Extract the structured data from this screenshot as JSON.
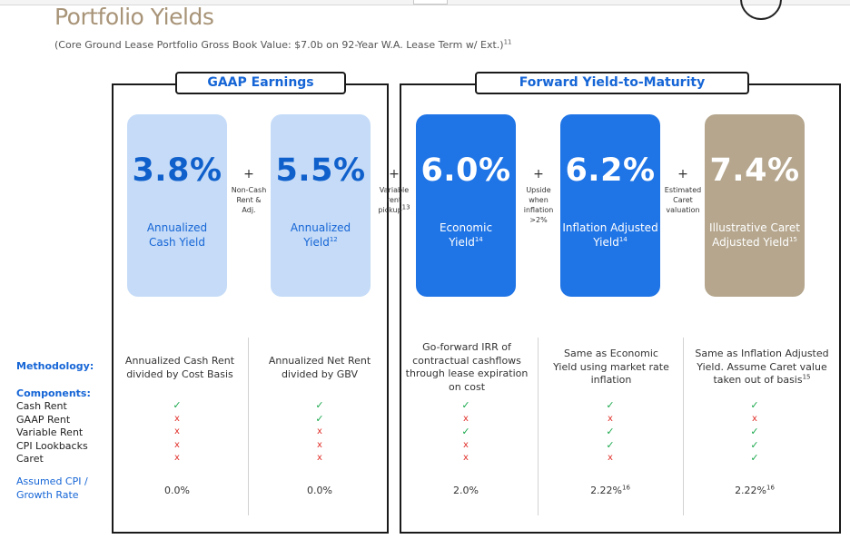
{
  "title": "Portfolio Yields",
  "subtitle": "(Core Ground Lease Portfolio Gross Book Value: $7.0b on 92-Year W.A. Lease Term w/ Ext.)",
  "subtitle_note": "11",
  "sections": {
    "gaap": "GAAP Earnings",
    "forward": "Forward Yield-to-Maturity"
  },
  "cards": [
    {
      "value": "3.8%",
      "label_1": "Annualized",
      "label_2": "Cash Yield",
      "note": ""
    },
    {
      "value": "5.5%",
      "label_1": "Annualized",
      "label_2": "Yield",
      "note": "12"
    },
    {
      "value": "6.0%",
      "label_1": "Economic",
      "label_2": "Yield",
      "note": "14"
    },
    {
      "value": "6.2%",
      "label_1": "Inflation Adjusted",
      "label_2": "Yield",
      "note": "14"
    },
    {
      "value": "7.4%",
      "label_1": "Illustrative Caret",
      "label_2": "Adjusted Yield",
      "note": "15"
    }
  ],
  "connectors": [
    {
      "sign": "+",
      "l1": "Non-Cash",
      "l2": "Rent &",
      "l3": "Adj.",
      "note": ""
    },
    {
      "sign": "+",
      "l1": "Variable",
      "l2": "rent",
      "l3": "pickup",
      "note": "13"
    },
    {
      "sign": "+",
      "l1": "Upside",
      "l2": "when",
      "l3": "inflation",
      "l4": ">2%"
    },
    {
      "sign": "+",
      "l1": "Estimated",
      "l2": "Caret",
      "l3": "valuation"
    }
  ],
  "rows": {
    "methodology": "Methodology:",
    "components": "Components:",
    "cash_rent": "Cash Rent",
    "gaap_rent": "GAAP Rent",
    "variable_rent": "Variable Rent",
    "cpi_lookbacks": "CPI Lookbacks",
    "caret": "Caret",
    "cpi_1": "Assumed CPI /",
    "cpi_2": "Growth Rate"
  },
  "methodology": [
    {
      "l1": "Annualized Cash Rent",
      "l2": "divided by Cost Basis"
    },
    {
      "l1": "Annualized Net Rent",
      "l2": "divided by GBV"
    },
    {
      "l1": "Go-forward IRR of",
      "l2": "contractual cashflows",
      "l3": "through lease expiration",
      "l4": "on cost"
    },
    {
      "l1": "Same as Economic",
      "l2": "Yield using market rate",
      "l3": "inflation"
    },
    {
      "l1": "Same as Inflation Adjusted",
      "l2": "Yield. Assume Caret value",
      "l3": "taken out of basis",
      "note": "15"
    }
  ],
  "components": [
    [
      "✓",
      "x",
      "x",
      "x",
      "x"
    ],
    [
      "✓",
      "✓",
      "x",
      "x",
      "x"
    ],
    [
      "✓",
      "x",
      "✓",
      "x",
      "x"
    ],
    [
      "✓",
      "x",
      "✓",
      "✓",
      "x"
    ],
    [
      "✓",
      "x",
      "✓",
      "✓",
      "✓"
    ]
  ],
  "cpi": [
    {
      "value": "0.0%",
      "note": ""
    },
    {
      "value": "0.0%",
      "note": ""
    },
    {
      "value": "2.0%",
      "note": ""
    },
    {
      "value": "2.22%",
      "note": "16"
    },
    {
      "value": "2.22%",
      "note": "16"
    }
  ],
  "colors": {
    "accent_blue": "#1565d6",
    "tan": "#b5a68d",
    "check": "#1aa84c",
    "cross": "#e0302a"
  }
}
